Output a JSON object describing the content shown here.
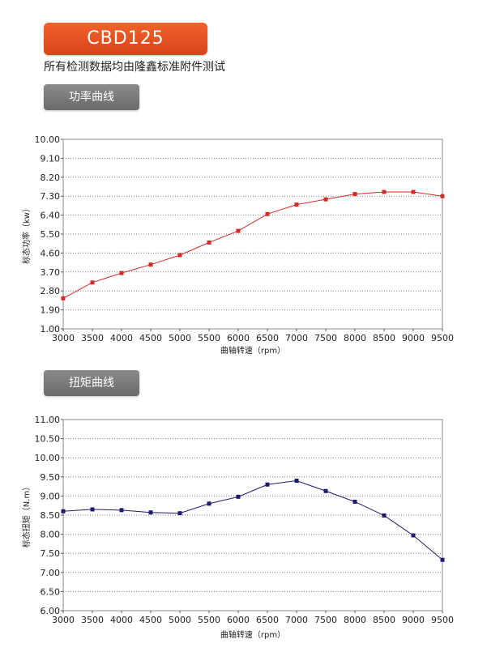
{
  "header": {
    "model": "CBD125",
    "note": "所有检测数据均由隆鑫标准附件测试"
  },
  "sections": [
    {
      "tag": "功率曲线"
    },
    {
      "tag": "扭矩曲线"
    }
  ],
  "colors": {
    "badge": "#e5531f",
    "tag": "#7a7a7a",
    "power_series": "#d12a2a",
    "torque_series": "#1c1c6e"
  },
  "chart_data": [
    {
      "type": "line",
      "xlabel": "曲轴转速（rpm）",
      "ylabel": "标态功率（kw）",
      "x": [
        3000,
        3500,
        4000,
        4500,
        5000,
        5500,
        6000,
        6500,
        7000,
        7500,
        8000,
        8500,
        9000,
        9500
      ],
      "x_tick_labels": [
        "3000",
        "3500",
        "4000",
        "4500",
        "5000",
        "5500",
        "6000",
        "6500",
        "7000",
        "7500",
        "8000",
        "8500",
        "9000",
        "9500"
      ],
      "y_tick_labels": [
        "1.00",
        "1.90",
        "2.80",
        "3.70",
        "4.60",
        "5.50",
        "6.40",
        "7.30",
        "8.20",
        "9.10",
        "10.00"
      ],
      "y_ticks": [
        1.0,
        1.9,
        2.8,
        3.7,
        4.6,
        5.5,
        6.4,
        7.3,
        8.2,
        9.1,
        10.0
      ],
      "ylim": [
        1.0,
        10.0
      ],
      "xlim": [
        3000,
        9500
      ],
      "grid": "horizontal dotted",
      "series": [
        {
          "values": [
            2.45,
            3.2,
            3.65,
            4.05,
            4.5,
            5.1,
            5.65,
            6.45,
            6.9,
            7.15,
            7.4,
            7.5,
            7.5,
            7.3
          ]
        }
      ]
    },
    {
      "type": "line",
      "xlabel": "曲轴转速（rpm）",
      "ylabel": "标态扭矩（N.m）",
      "x": [
        3000,
        3500,
        4000,
        4500,
        5000,
        5500,
        6000,
        6500,
        7000,
        7500,
        8000,
        8500,
        9000,
        9500
      ],
      "x_tick_labels": [
        "3000",
        "3500",
        "4000",
        "4500",
        "5000",
        "5500",
        "6000",
        "6500",
        "7000",
        "7500",
        "8000",
        "8500",
        "9000",
        "9500"
      ],
      "y_tick_labels": [
        "6.00",
        "6.50",
        "7.00",
        "7.50",
        "8.00",
        "8.50",
        "9.00",
        "9.50",
        "10.00",
        "10.50",
        "11.00"
      ],
      "y_ticks": [
        6.0,
        6.5,
        7.0,
        7.5,
        8.0,
        8.5,
        9.0,
        9.5,
        10.0,
        10.5,
        11.0
      ],
      "ylim": [
        6.0,
        11.0
      ],
      "xlim": [
        3000,
        9500
      ],
      "grid": "horizontal dotted",
      "series": [
        {
          "values": [
            8.6,
            8.65,
            8.63,
            8.57,
            8.55,
            8.8,
            8.98,
            9.3,
            9.4,
            9.13,
            8.85,
            8.49,
            7.97,
            7.33
          ]
        }
      ]
    }
  ]
}
